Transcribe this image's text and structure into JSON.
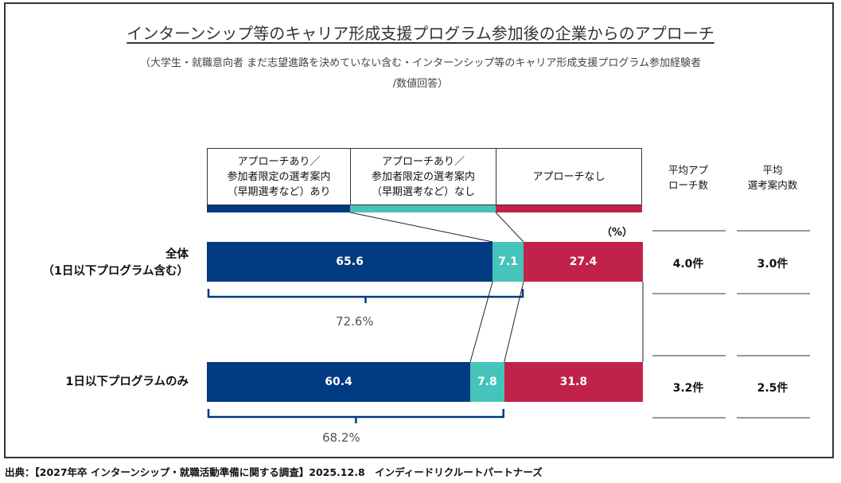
{
  "title": "インターンシップ等のキャリア形成支援プログラム参加後の企業からのアプローチ",
  "subtitle_line1": "（大学生・就職意向者 まだ志望進路を決めていない含む・インターンシップ等のキャリア形成支援プログラム参加経験者",
  "subtitle_line2": "/数値回答）",
  "unit_label": "（%）",
  "legend": [
    {
      "label": "アプローチあり／\n参加者限定の選考案内\n（早期選考など）あり",
      "color": "#003a80"
    },
    {
      "label": "アプローチあり／\n参加者限定の選考案内\n（早期選考など）なし",
      "color": "#45c4bb"
    },
    {
      "label": "アプローチなし",
      "color": "#c0224a"
    }
  ],
  "side_columns": [
    {
      "header": "平均アプ\nローチ数"
    },
    {
      "header": "平均\n選考案内数"
    }
  ],
  "chart_data": {
    "type": "bar",
    "orientation": "horizontal-stacked-100",
    "title": "インターンシップ等のキャリア形成支援プログラム参加後の企業からのアプローチ",
    "unit": "%",
    "categories": [
      "全体\n（1日以下プログラム含む）",
      "1日以下プログラムのみ"
    ],
    "series": [
      {
        "name": "アプローチあり／参加者限定の選考案内（早期選考など）あり",
        "values": [
          65.6,
          60.4
        ],
        "color": "#003a80"
      },
      {
        "name": "アプローチあり／参加者限定の選考案内（早期選考など）なし",
        "values": [
          7.1,
          7.8
        ],
        "color": "#45c4bb"
      },
      {
        "name": "アプローチなし",
        "values": [
          27.4,
          31.8
        ],
        "color": "#c0224a"
      }
    ],
    "bracket_totals": [
      "72.6%",
      "68.2%"
    ],
    "avg_approach": [
      "4.0件",
      "3.2件"
    ],
    "avg_selection": [
      "3.0件",
      "2.5件"
    ],
    "xlim": [
      0,
      100
    ],
    "legend_position": "top"
  },
  "footer": "出典：【2027年卒 インターンシップ・就職活動準備に関する調査】2025.12.8　インディードリクルートパートナーズ"
}
